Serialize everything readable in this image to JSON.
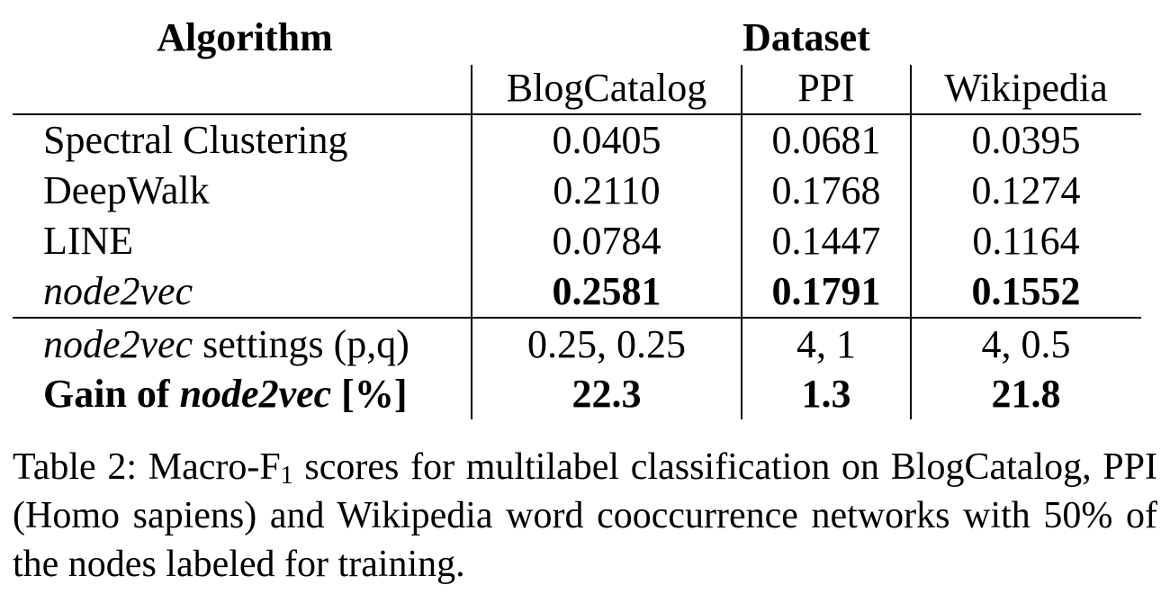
{
  "table": {
    "header": {
      "algorithm": "Algorithm",
      "dataset": "Dataset",
      "columns": [
        "BlogCatalog",
        "PPI",
        "Wikipedia"
      ]
    },
    "rows": [
      {
        "algorithm": "Spectral Clustering",
        "values": [
          "0.0405",
          "0.0681",
          "0.0395"
        ]
      },
      {
        "algorithm": "DeepWalk",
        "values": [
          "0.2110",
          "0.1768",
          "0.1274"
        ]
      },
      {
        "algorithm": "LINE",
        "values": [
          "0.0784",
          "0.1447",
          "0.1164"
        ]
      },
      {
        "algorithm": "node2vec",
        "values": [
          "0.2581",
          "0.1791",
          "0.1552"
        ]
      }
    ],
    "settings_row": {
      "label_italic": "node2vec",
      "label_rest": " settings (p,q)",
      "values": [
        "0.25, 0.25",
        "4, 1",
        "4, 0.5"
      ]
    },
    "gain_row": {
      "label_prefix": "Gain of ",
      "label_italic": "node2vec",
      "label_suffix": " [%]",
      "values": [
        "22.3",
        "1.3",
        "21.8"
      ]
    }
  },
  "caption": {
    "prefix": "Table 2: Macro-F",
    "subscript": "1",
    "text": " scores for multilabel classification on BlogCatalog, PPI (Homo sapiens) and Wikipedia word cooccurrence networks with 50% of the nodes labeled for training."
  }
}
